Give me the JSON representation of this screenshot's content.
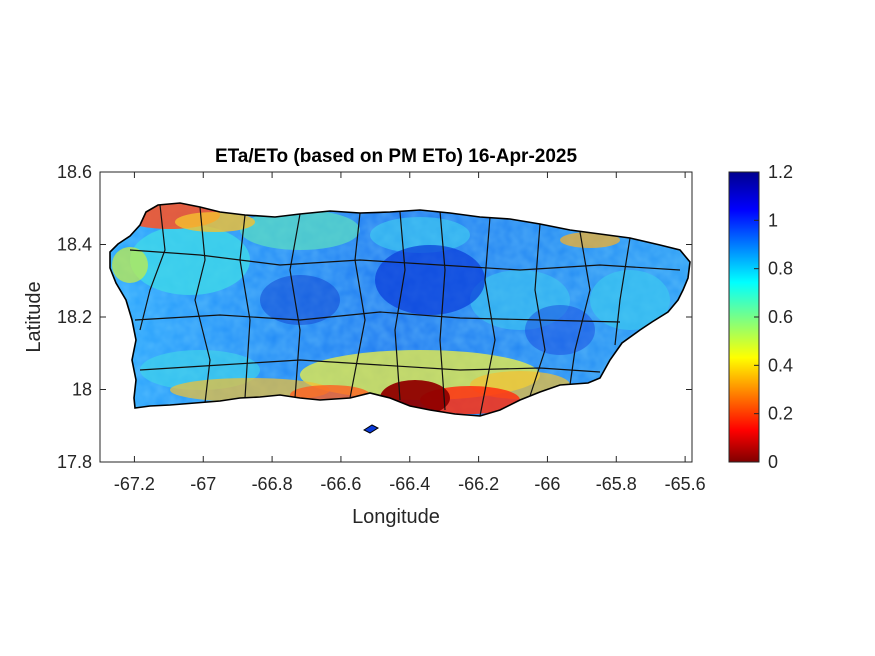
{
  "chart_data": {
    "type": "heatmap",
    "title": "ETa/ETo (based on PM ETo) 16-Apr-2025",
    "xlabel": "Longitude",
    "ylabel": "Latitude",
    "xlim": [
      -67.3,
      -65.58
    ],
    "ylim": [
      17.8,
      18.6
    ],
    "xticks": [
      -67.2,
      -67,
      -66.8,
      -66.6,
      -66.4,
      -66.2,
      -66,
      -65.8,
      -65.6
    ],
    "yticks": [
      17.8,
      18,
      18.2,
      18.4,
      18.6
    ],
    "xtick_labels": [
      "-67.2",
      "-67",
      "-66.8",
      "-66.6",
      "-66.4",
      "-66.2",
      "-66",
      "-65.8",
      "-65.6"
    ],
    "ytick_labels": [
      "17.8",
      "18",
      "18.2",
      "18.4",
      "18.6"
    ],
    "colorbar": {
      "colormap": "jet (reversed)",
      "range": [
        0,
        1.2
      ],
      "ticks": [
        0,
        0.2,
        0.4,
        0.6,
        0.8,
        1,
        1.2
      ],
      "tick_labels": [
        "0",
        "0.2",
        "0.4",
        "0.6",
        "0.8",
        "1",
        "1.2"
      ]
    },
    "regions_description_values": [
      {
        "area": "south coast near -66.4 lon, 17.95 lat",
        "value": 0.05
      },
      {
        "area": "south coast -66.6 to -66.1",
        "value": 0.25
      },
      {
        "area": "northwest coast near -67.05 lon, 18.48 lat",
        "value": 0.3
      },
      {
        "area": "central highlands",
        "value": 0.9
      },
      {
        "area": "east interior",
        "value": 0.85
      }
    ]
  }
}
